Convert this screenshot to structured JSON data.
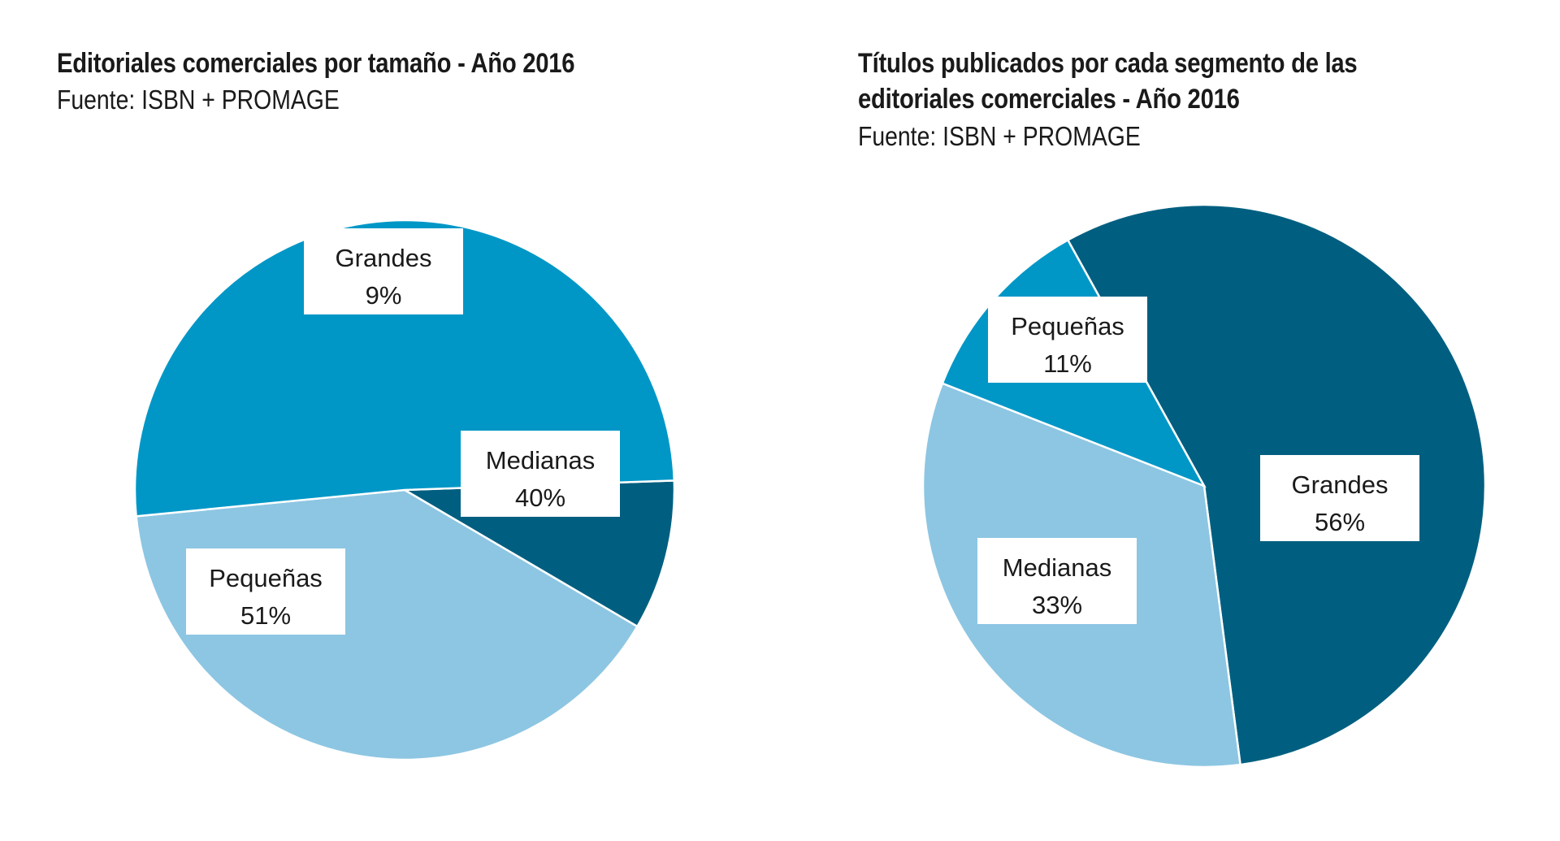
{
  "charts": [
    {
      "title": "Editoriales comerciales por tamaño - Año 2016",
      "source": "Fuente: ISBN + PROMAGE"
    },
    {
      "title": "Títulos publicados por cada segmento de las editoriales comerciales - Año 2016",
      "source": "Fuente: ISBN + PROMAGE"
    }
  ],
  "chart_data": [
    {
      "type": "pie",
      "title": "Editoriales comerciales por tamaño - Año 2016",
      "subtitle": "Fuente: ISBN + PROMAGE",
      "labels": [
        "Grandes",
        "Medianas",
        "Pequeñas"
      ],
      "values": [
        9,
        40,
        51
      ],
      "value_labels": [
        "9%",
        "40%",
        "51%"
      ],
      "colors": [
        "#005f80",
        "#8dc6e2",
        "#0097c7"
      ]
    },
    {
      "type": "pie",
      "title": "Títulos publicados por cada segmento de las editoriales comerciales - Año 2016",
      "subtitle": "Fuente: ISBN + PROMAGE",
      "labels": [
        "Grandes",
        "Medianas",
        "Pequeñas"
      ],
      "values": [
        56,
        33,
        11
      ],
      "value_labels": [
        "56%",
        "33%",
        "11%"
      ],
      "colors": [
        "#005f80",
        "#8dc6e2",
        "#0097c7"
      ]
    }
  ]
}
